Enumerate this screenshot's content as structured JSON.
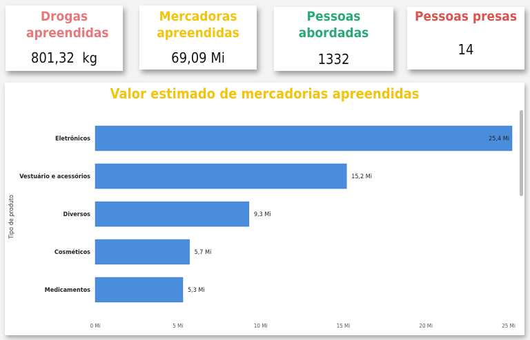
{
  "cards": [
    {
      "title": "Drogas apreendidas",
      "value": "801,32  kg",
      "color": "#e8777a"
    },
    {
      "title": "Mercadoras apreendidas",
      "value": "69,09 Mi",
      "color": "#f2c40f"
    },
    {
      "title": "Pessoas abordadas",
      "value": "1332",
      "color": "#2aa876"
    },
    {
      "title": "Pessoas presas",
      "value": "14",
      "color": "#d9534f"
    }
  ],
  "chart_data": {
    "type": "bar",
    "orientation": "horizontal",
    "title": "Valor estimado de mercadorias apreendidas",
    "ylabel": "Tipo de produto",
    "xlabel": "",
    "categories": [
      "Eletrônicos",
      "Vestuário e acessórios",
      "Diversos",
      "Cosméticos",
      "Medicamentos"
    ],
    "values": [
      25.4,
      15.2,
      9.3,
      5.7,
      5.3
    ],
    "data_labels": [
      "25,4 Mi",
      "15,2 Mi",
      "9,3 Mi",
      "5,7 Mi",
      "5,3 Mi"
    ],
    "xticks": [
      "0 Mi",
      "5 Mi",
      "10 Mi",
      "15 Mi",
      "20 Mi",
      "25 Mi"
    ],
    "xlim": [
      0,
      25
    ],
    "unit": "Mi",
    "grid": false,
    "bar_color": "#4a8ddc"
  }
}
